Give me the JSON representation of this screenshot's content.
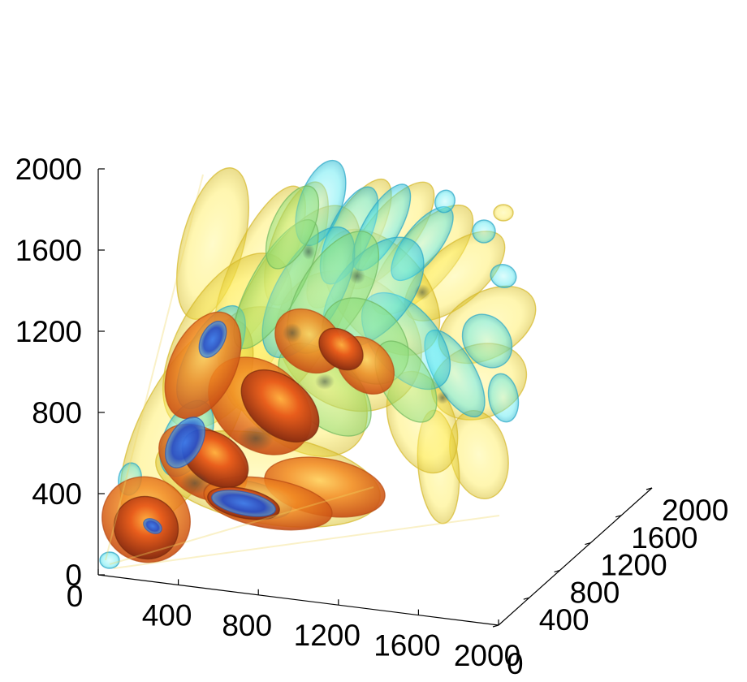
{
  "chart_data": {
    "type": "volume-isosurface-3d",
    "title": "",
    "axes": {
      "z": {
        "ticks": [
          "0",
          "400",
          "800",
          "1200",
          "1600",
          "2000"
        ],
        "range": [
          0,
          2000
        ]
      },
      "x": {
        "ticks": [
          "0",
          "400",
          "800",
          "1200",
          "1600",
          "2000"
        ],
        "range": [
          0,
          2000
        ]
      },
      "y": {
        "ticks": [
          "0",
          "400",
          "800",
          "1200",
          "1600",
          "2000"
        ],
        "range": [
          0,
          2000
        ]
      }
    },
    "isosurface_colors": {
      "lowest": "#fff35a",
      "low": "#5ff0f0",
      "mid": "#ffb02a",
      "high": "#e8561a",
      "core": "#c23a10",
      "negative_core": "#1f52d6"
    },
    "grid": false
  }
}
